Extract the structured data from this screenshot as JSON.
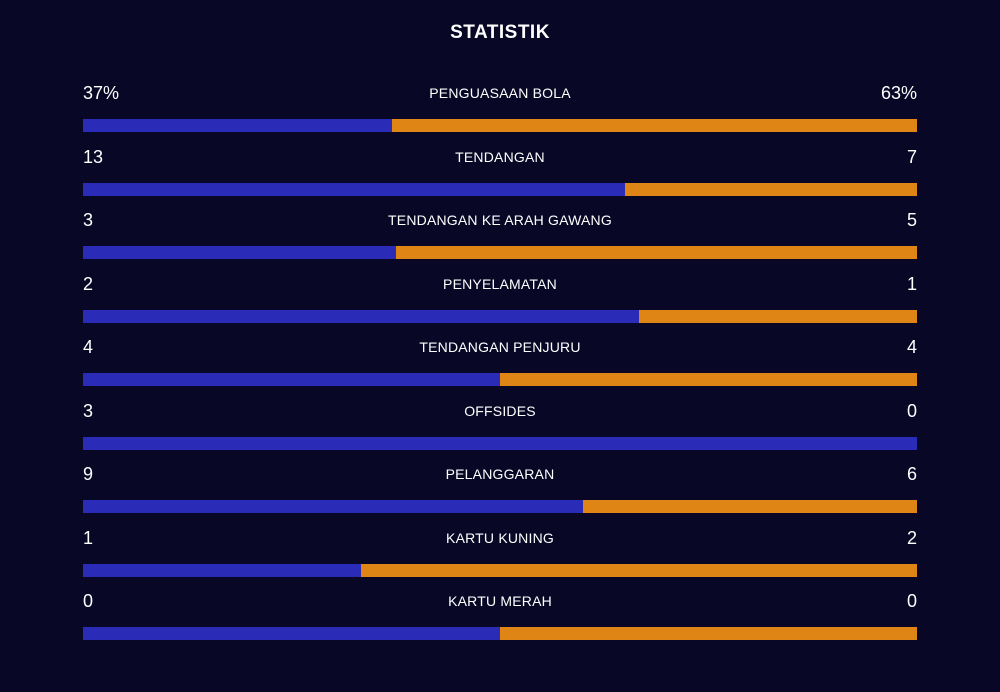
{
  "title": "STATISTIK",
  "colors": {
    "background": "#080826",
    "home_bar": "#2a2bb6",
    "away_bar": "#de8516",
    "text": "#ffffff"
  },
  "stats": [
    {
      "label": "PENGUASAAN BOLA",
      "home": "37%",
      "away": "63%",
      "home_share": 0.37
    },
    {
      "label": "TENDANGAN",
      "home": "13",
      "away": "7",
      "home_share": 0.65
    },
    {
      "label": "TENDANGAN KE ARAH GAWANG",
      "home": "3",
      "away": "5",
      "home_share": 0.375
    },
    {
      "label": "PENYELAMATAN",
      "home": "2",
      "away": "1",
      "home_share": 0.667
    },
    {
      "label": "TENDANGAN PENJURU",
      "home": "4",
      "away": "4",
      "home_share": 0.5
    },
    {
      "label": "OFFSIDES",
      "home": "3",
      "away": "0",
      "home_share": 1.0
    },
    {
      "label": "PELANGGARAN",
      "home": "9",
      "away": "6",
      "home_share": 0.6
    },
    {
      "label": "KARTU KUNING",
      "home": "1",
      "away": "2",
      "home_share": 0.333
    },
    {
      "label": "KARTU MERAH",
      "home": "0",
      "away": "0",
      "home_share": 0.5
    }
  ]
}
